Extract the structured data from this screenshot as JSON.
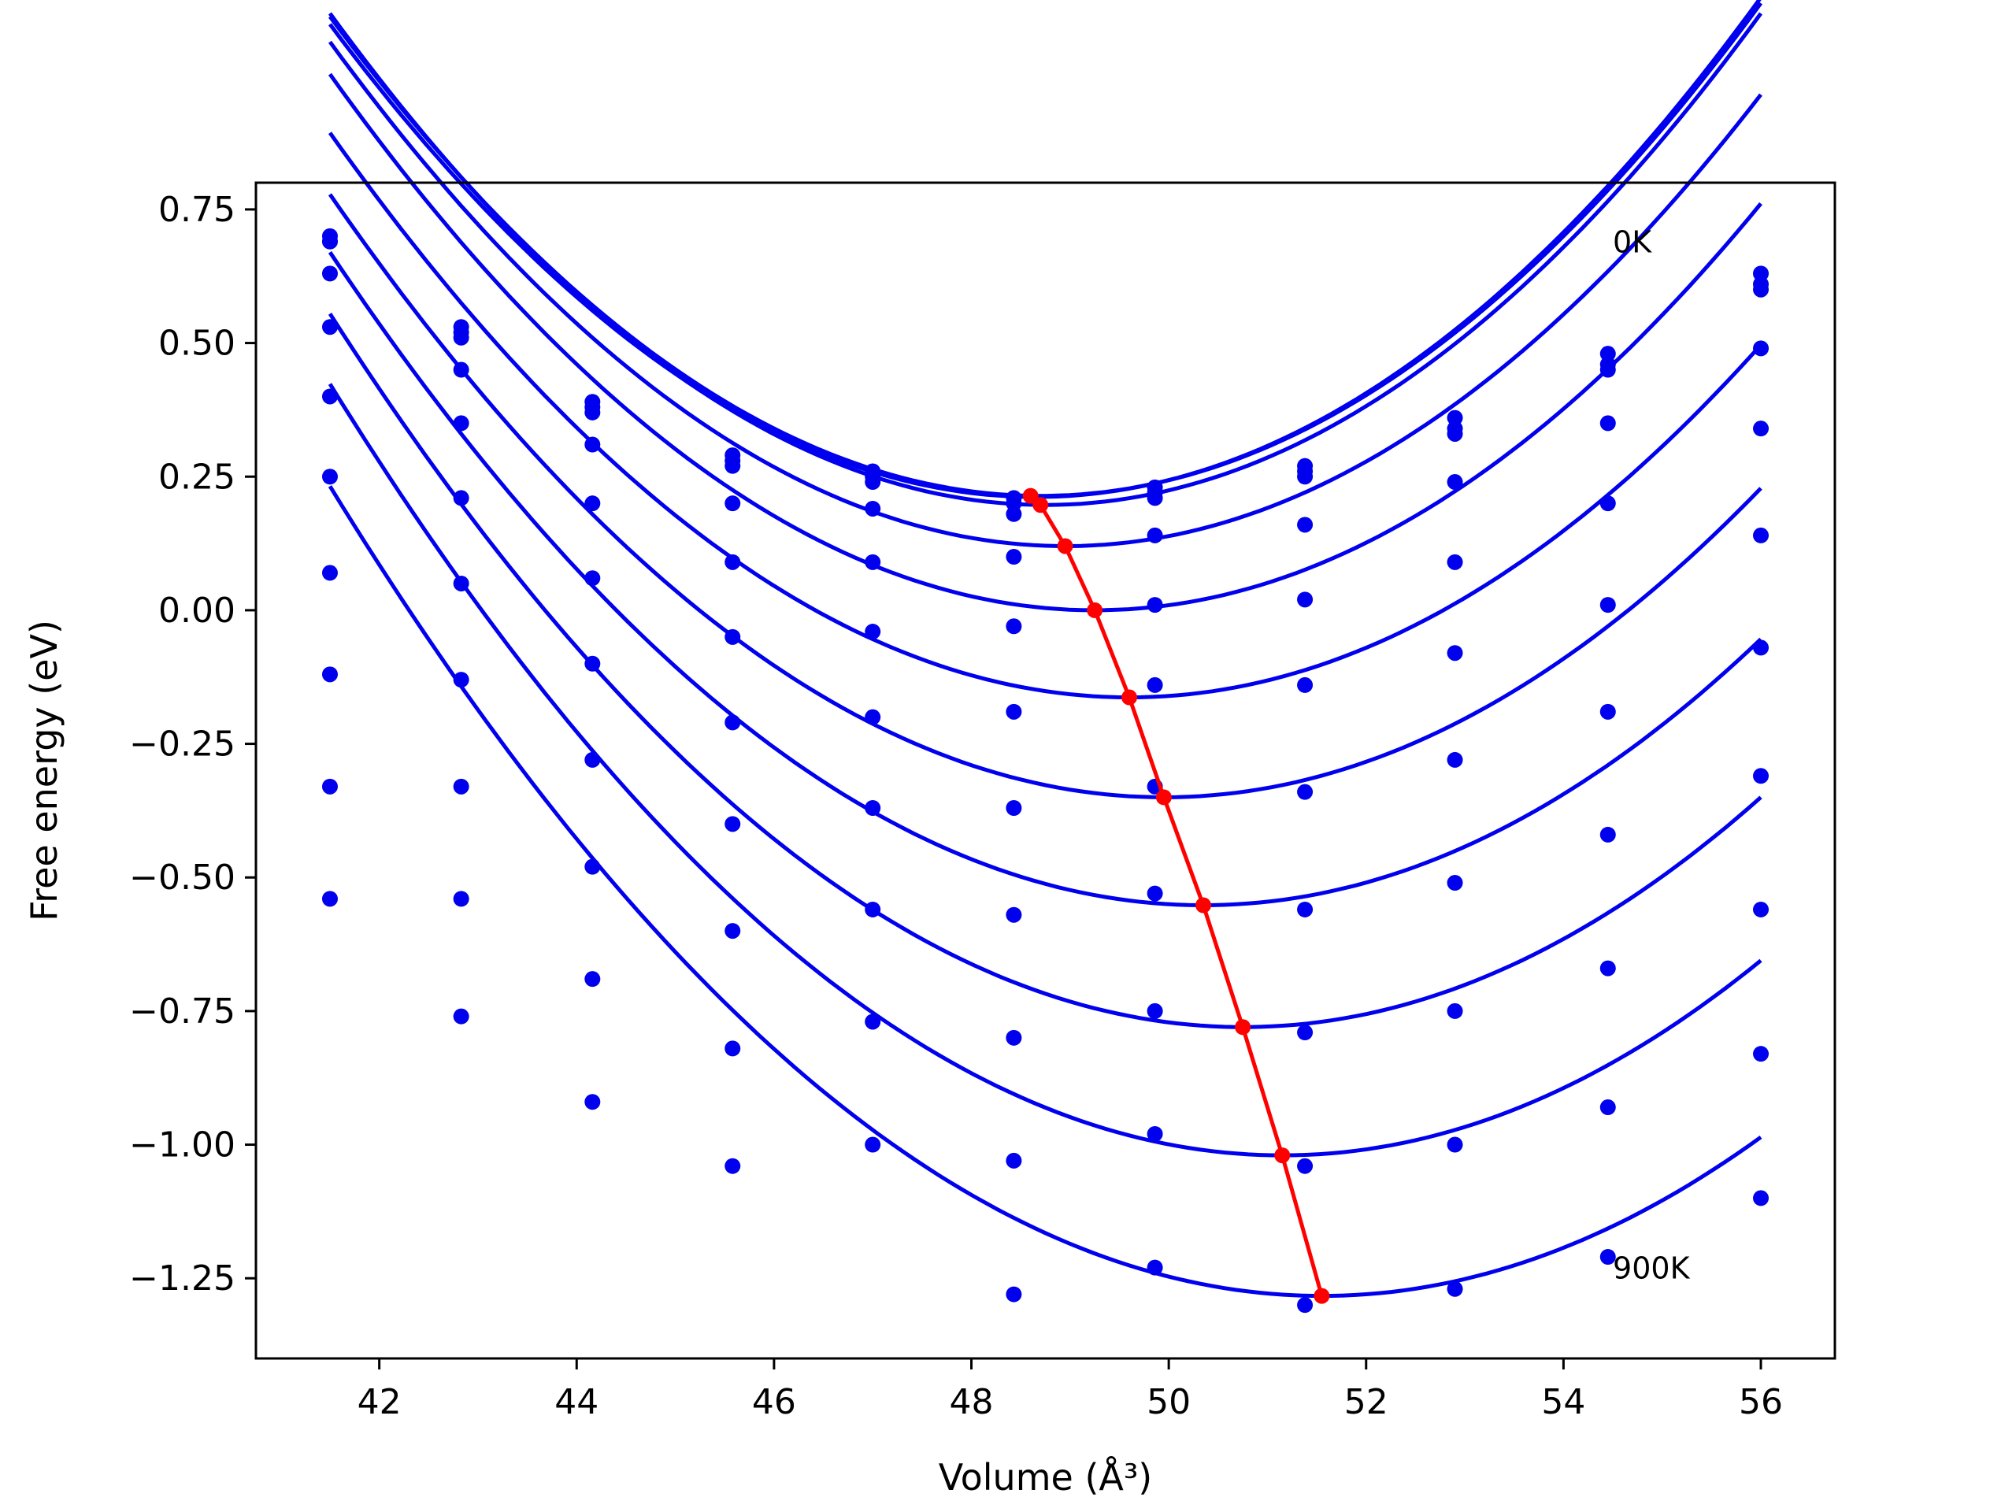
{
  "chart_data": {
    "type": "line",
    "title": "",
    "xlabel": "Volume (Å³)",
    "ylabel": "Free energy (eV)",
    "xlim": [
      40.75,
      56.75
    ],
    "ylim": [
      -1.4,
      0.8
    ],
    "x_ticks": [
      42,
      44,
      46,
      48,
      50,
      52,
      54,
      56
    ],
    "x_tick_labels": [
      "42",
      "44",
      "46",
      "48",
      "50",
      "52",
      "54",
      "56"
    ],
    "y_ticks": [
      0.75,
      0.5,
      0.25,
      0.0,
      -0.25,
      -0.5,
      -0.75,
      -1.0,
      -1.25
    ],
    "y_tick_labels": [
      "0.75",
      "0.50",
      "0.25",
      "0.00",
      "−0.25",
      "−0.50",
      "−0.75",
      "−1.00",
      "−1.25"
    ],
    "grid": false,
    "annotations": [
      {
        "text": "0K",
        "x": 54.5,
        "y": 0.69
      },
      {
        "text": "900K",
        "x": 54.5,
        "y": -1.23
      }
    ],
    "x": [
      41.5,
      42.83,
      44.16,
      45.58,
      47.0,
      48.43,
      49.86,
      51.38,
      52.9,
      54.45,
      56.0
    ],
    "series": [
      {
        "values": [
          0.7,
          0.53,
          0.39,
          0.29,
          0.26,
          0.21,
          0.23,
          0.27,
          0.36,
          0.48,
          0.63
        ],
        "fit": {
          "a": 0.0173,
          "vmin": 48.7,
          "fmin": 0.214
        }
      },
      {
        "values": [
          0.69,
          0.51,
          0.38,
          0.28,
          0.25,
          0.2,
          0.22,
          0.26,
          0.34,
          0.46,
          0.61
        ],
        "fit": {
          "a": 0.0173,
          "vmin": 48.65,
          "fmin": 0.212
        }
      },
      {
        "values": [
          0.69,
          0.52,
          0.37,
          0.27,
          0.24,
          0.18,
          0.21,
          0.25,
          0.33,
          0.45,
          0.6
        ],
        "fit": {
          "a": 0.0175,
          "vmin": 48.75,
          "fmin": 0.197
        }
      },
      {
        "values": [
          0.63,
          0.45,
          0.31,
          0.2,
          0.19,
          0.1,
          0.14,
          0.16,
          0.24,
          0.35,
          0.49
        ],
        "fit": {
          "a": 0.017,
          "vmin": 48.95,
          "fmin": 0.12
        }
      },
      {
        "values": [
          0.53,
          0.35,
          0.2,
          0.09,
          0.09,
          -0.03,
          0.01,
          0.02,
          0.09,
          0.2,
          0.34
        ],
        "fit": {
          "a": 0.0167,
          "vmin": 49.25,
          "fmin": 0.0
        }
      },
      {
        "values": [
          0.4,
          0.21,
          0.06,
          -0.05,
          -0.04,
          -0.19,
          -0.14,
          -0.14,
          -0.08,
          0.01,
          0.14
        ],
        "fit": {
          "a": 0.0161,
          "vmin": 49.6,
          "fmin": -0.163
        }
      },
      {
        "values": [
          0.25,
          0.05,
          -0.1,
          -0.21,
          -0.2,
          -0.37,
          -0.33,
          -0.34,
          -0.28,
          -0.19,
          -0.07
        ],
        "fit": {
          "a": 0.0158,
          "vmin": 49.95,
          "fmin": -0.35
        }
      },
      {
        "values": [
          0.07,
          -0.13,
          -0.28,
          -0.4,
          -0.37,
          -0.57,
          -0.53,
          -0.56,
          -0.51,
          -0.42,
          -0.31
        ],
        "fit": {
          "a": 0.0156,
          "vmin": 50.35,
          "fmin": -0.552
        }
      },
      {
        "values": [
          -0.12,
          -0.33,
          -0.48,
          -0.6,
          -0.56,
          -0.8,
          -0.75,
          -0.79,
          -0.75,
          -0.67,
          -0.56
        ],
        "fit": {
          "a": 0.0156,
          "vmin": 50.75,
          "fmin": -0.78
        }
      },
      {
        "values": [
          -0.33,
          -0.54,
          -0.69,
          -0.82,
          -0.77,
          -1.03,
          -0.98,
          -1.04,
          -1.0,
          -0.93,
          -0.83
        ],
        "fit": {
          "a": 0.0155,
          "vmin": 51.15,
          "fmin": -1.02
        }
      },
      {
        "values": [
          -0.54,
          -0.76,
          -0.92,
          -1.04,
          -1.0,
          -1.28,
          -1.23,
          -1.3,
          -1.27,
          -1.21,
          -1.1
        ],
        "fit": {
          "a": 0.015,
          "vmin": 51.55,
          "fmin": -1.283
        }
      }
    ],
    "minima_line": {
      "x": [
        48.6,
        48.7,
        48.95,
        49.25,
        49.6,
        49.95,
        50.35,
        50.75,
        51.15,
        51.55
      ],
      "y": [
        0.214,
        0.197,
        0.12,
        0.0,
        -0.163,
        -0.35,
        -0.552,
        -0.78,
        -1.02,
        -1.283
      ]
    },
    "colors": {
      "series": "#0000ee",
      "minima": "#ff0000",
      "axes": "#000000"
    }
  }
}
